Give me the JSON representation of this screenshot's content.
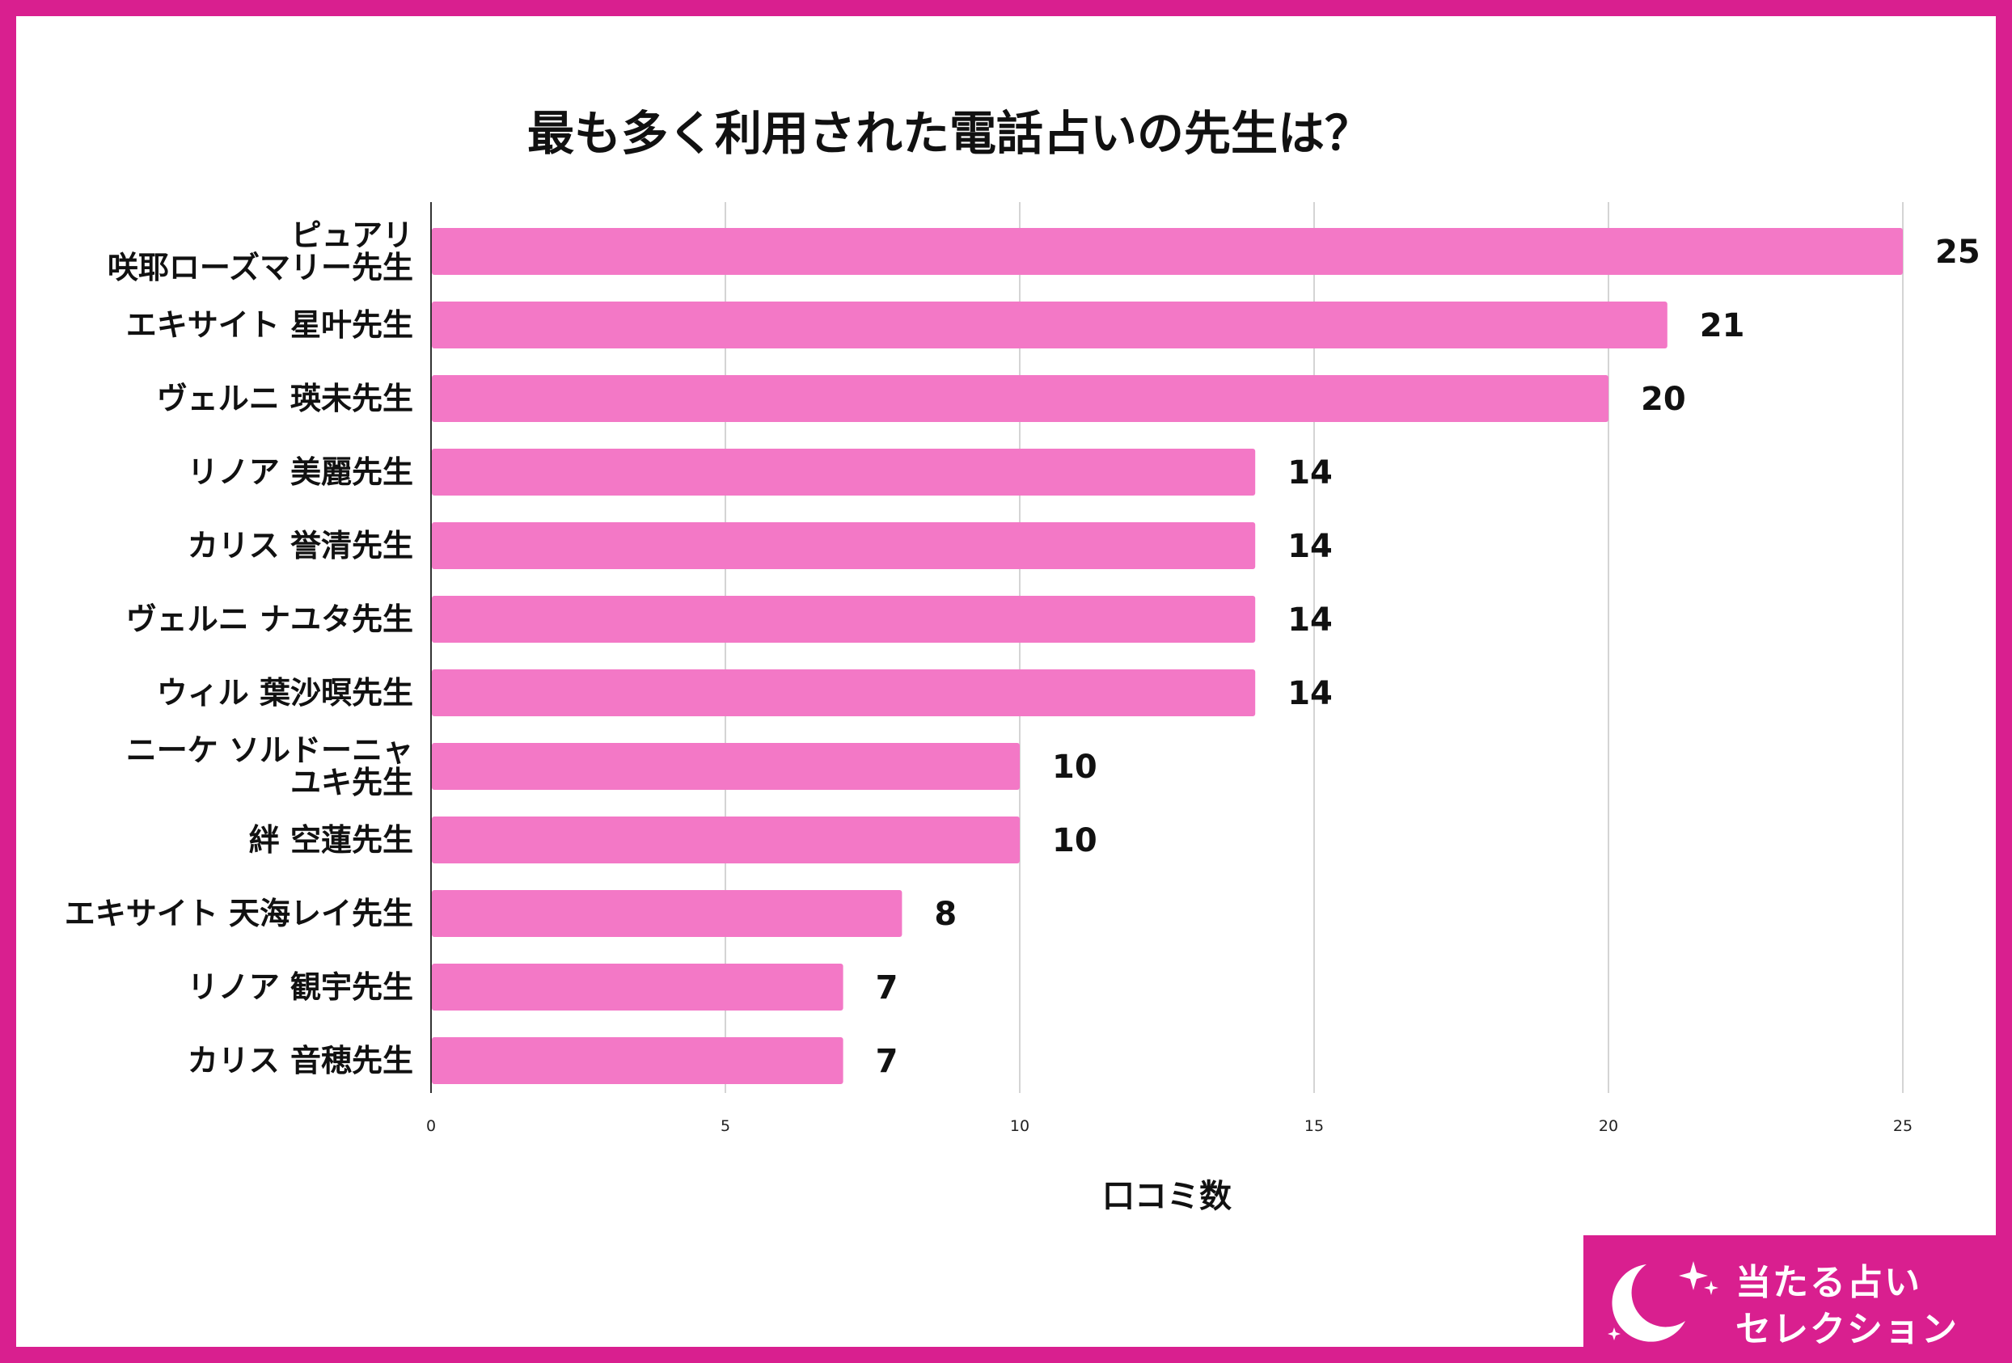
{
  "chart_data": {
    "type": "bar",
    "orientation": "horizontal",
    "title": "最も多く利用された電話占いの先生は？",
    "xlabel": "口コミ数",
    "ylabel": "",
    "xlim": [
      0,
      25
    ],
    "xticks": [
      0,
      5,
      10,
      15,
      20,
      25
    ],
    "grid": true,
    "bar_color": "#f378c6",
    "categories": [
      [
        "ピュアリ",
        "咲耶ローズマリー先生"
      ],
      [
        "エキサイト 星叶先生"
      ],
      [
        "ヴェルニ 瑛未先生"
      ],
      [
        "リノア 美麗先生"
      ],
      [
        "カリス 誉清先生"
      ],
      [
        "ヴェルニ ナユタ先生"
      ],
      [
        "ウィル 葉沙暝先生"
      ],
      [
        "ニーケ ソルドーニャ",
        "ユキ先生"
      ],
      [
        "絆 空蓮先生"
      ],
      [
        "エキサイト 天海レイ先生"
      ],
      [
        "リノア 観宇先生"
      ],
      [
        "カリス 音穂先生"
      ]
    ],
    "values": [
      25,
      21,
      20,
      14,
      14,
      14,
      14,
      10,
      10,
      8,
      7,
      7
    ]
  },
  "colors": {
    "frame": "#d91f8f",
    "bar": "#f378c6",
    "badge": "#d91f8f"
  },
  "badge": {
    "line1": "当たる占い",
    "line2": "セレクション",
    "icon": "crescent-moon-icon"
  }
}
